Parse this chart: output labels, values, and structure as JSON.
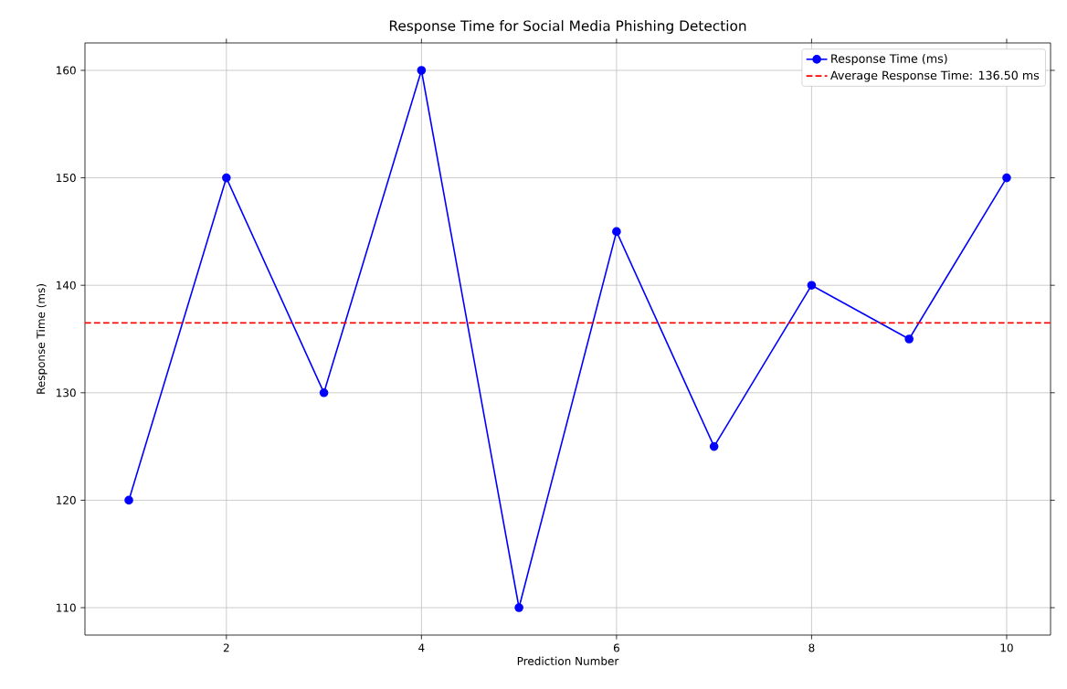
{
  "chart_data": {
    "type": "line",
    "title": "Response Time for Social Media Phishing Detection",
    "xlabel": "Prediction Number",
    "ylabel": "Response Time (ms)",
    "x": [
      1,
      2,
      3,
      4,
      5,
      6,
      7,
      8,
      9,
      10
    ],
    "series": [
      {
        "name": "Response Time (ms)",
        "color": "#0000ff",
        "values": [
          120,
          150,
          130,
          160,
          110,
          145,
          125,
          140,
          135,
          150
        ]
      }
    ],
    "xlim": [
      0.55,
      10.45
    ],
    "ylim": [
      107.45,
      162.55
    ],
    "xticks": [
      2,
      4,
      6,
      8,
      10
    ],
    "yticks": [
      110,
      120,
      130,
      140,
      150,
      160
    ],
    "ref_lines": [
      {
        "axis": "y",
        "value": 136.5,
        "label": "Average Response Time: 136.50 ms",
        "color": "#ff0000",
        "line_style": "dashed"
      }
    ],
    "grid": true,
    "legend": "top right",
    "marker": "circle",
    "line_style": "solid"
  }
}
